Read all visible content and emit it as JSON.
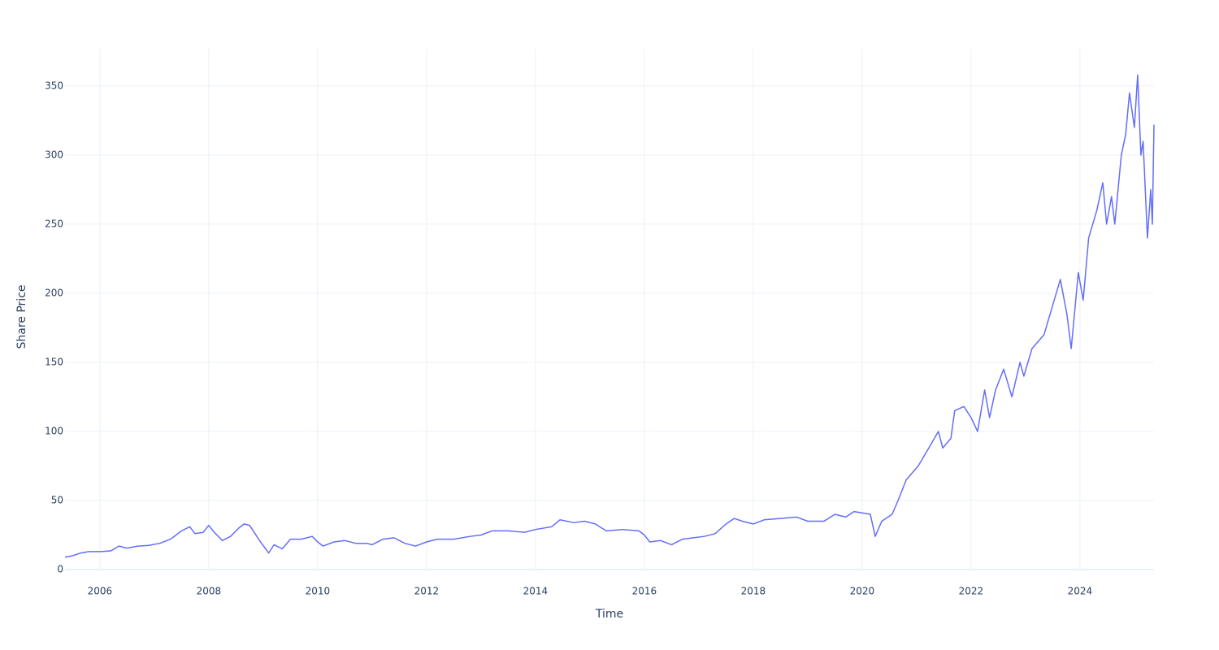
{
  "chart_data": {
    "type": "line",
    "x_label": "Time",
    "y_label": "Share Price",
    "x": [
      2005.36,
      2005.5,
      2005.65,
      2005.8,
      2006.0,
      2006.2,
      2006.35,
      2006.5,
      2006.7,
      2006.9,
      2007.1,
      2007.3,
      2007.5,
      2007.65,
      2007.75,
      2007.9,
      2008.0,
      2008.1,
      2008.25,
      2008.4,
      2008.55,
      2008.65,
      2008.75,
      2008.85,
      2008.95,
      2009.1,
      2009.2,
      2009.35,
      2009.5,
      2009.7,
      2009.9,
      2010.0,
      2010.1,
      2010.3,
      2010.5,
      2010.7,
      2010.9,
      2011.0,
      2011.2,
      2011.4,
      2011.6,
      2011.8,
      2012.0,
      2012.2,
      2012.5,
      2012.8,
      2013.0,
      2013.2,
      2013.5,
      2013.8,
      2014.0,
      2014.3,
      2014.45,
      2014.7,
      2014.9,
      2015.1,
      2015.3,
      2015.6,
      2015.9,
      2016.0,
      2016.1,
      2016.3,
      2016.5,
      2016.7,
      2016.9,
      2017.1,
      2017.3,
      2017.5,
      2017.65,
      2017.8,
      2018.0,
      2018.2,
      2018.5,
      2018.8,
      2019.0,
      2019.3,
      2019.5,
      2019.7,
      2019.85,
      2020.0,
      2020.15,
      2020.24,
      2020.36,
      2020.55,
      2020.66,
      2020.81,
      2021.03,
      2021.18,
      2021.4,
      2021.48,
      2021.63,
      2021.7,
      2021.87,
      2022.0,
      2022.12,
      2022.25,
      2022.34,
      2022.45,
      2022.6,
      2022.75,
      2022.9,
      2022.97,
      2023.12,
      2023.34,
      2023.49,
      2023.64,
      2023.76,
      2023.84,
      2023.97,
      2024.06,
      2024.16,
      2024.31,
      2024.42,
      2024.49,
      2024.58,
      2024.64,
      2024.76,
      2024.84,
      2024.91,
      2025.0,
      2025.06,
      2025.12,
      2025.16,
      2025.24,
      2025.3,
      2025.33,
      2025.36
    ],
    "values": [
      9,
      10,
      12,
      13,
      13,
      13.5,
      17,
      15.5,
      17,
      17.5,
      19,
      22,
      28,
      31,
      26,
      27,
      32,
      27,
      21,
      24,
      30,
      33,
      32,
      26,
      20,
      12,
      18,
      15,
      22,
      22,
      24,
      20,
      17,
      20,
      21,
      19,
      19,
      18,
      22,
      23,
      19,
      17,
      20,
      22,
      22,
      24,
      25,
      28,
      28,
      27,
      29,
      31,
      36,
      34,
      35,
      33,
      28,
      29,
      28,
      25,
      20,
      21,
      18,
      22,
      23,
      24,
      26,
      33,
      37,
      35,
      33,
      36,
      37,
      38,
      35,
      35,
      40,
      38,
      42,
      41,
      40,
      24,
      35,
      40,
      50,
      65,
      75,
      85,
      100,
      88,
      95,
      115,
      118,
      110,
      100,
      130,
      110,
      130,
      145,
      125,
      150,
      140,
      160,
      170,
      190,
      210,
      185,
      160,
      215,
      195,
      240,
      260,
      280,
      250,
      270,
      250,
      300,
      315,
      345,
      320,
      358,
      300,
      310,
      240,
      275,
      250,
      322
    ],
    "color": "#636efa",
    "xlim": [
      2005.36,
      2025.36
    ],
    "xticks": [
      2006,
      2008,
      2010,
      2012,
      2014,
      2016,
      2018,
      2020,
      2022,
      2024
    ],
    "ylim": [
      0,
      377
    ],
    "yticks": [
      0,
      50,
      100,
      150,
      200,
      250,
      300,
      350
    ],
    "grid": true
  }
}
